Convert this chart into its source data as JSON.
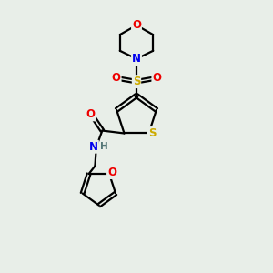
{
  "bg_color": "#e8eee8",
  "atom_colors": {
    "C": "#000000",
    "N": "#0000ee",
    "O": "#ee0000",
    "S": "#ccaa00",
    "H": "#557777"
  },
  "bond_color": "#000000",
  "line_width": 1.6,
  "fig_bg": "#e8eee8"
}
